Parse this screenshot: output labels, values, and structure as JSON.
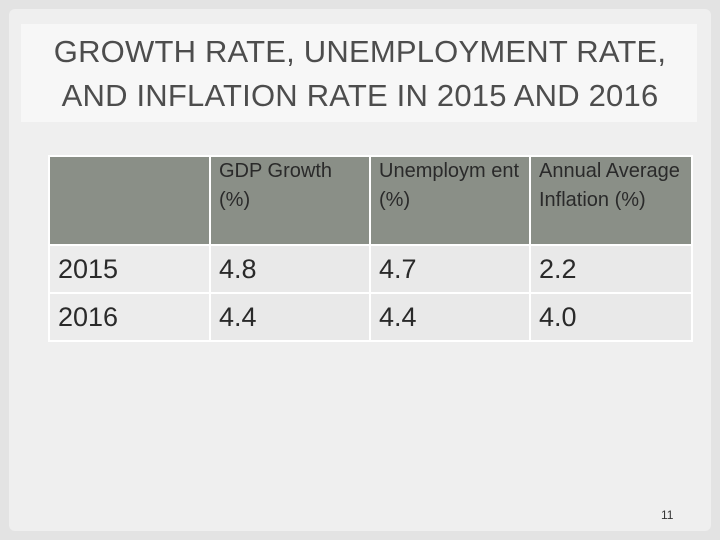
{
  "title": "GROWTH RATE, UNEMPLOYMENT RATE,\nAND INFLATION RATE IN 2015 AND 2016",
  "table": {
    "headers": [
      "",
      "GDP Growth (%)",
      "Unemploym ent (%)",
      "Annual Average Inflation (%)"
    ],
    "rows": [
      [
        "2015",
        "4.8",
        "4.7",
        "2.2"
      ],
      [
        "2016",
        "4.4",
        "4.4",
        "4.0"
      ]
    ]
  },
  "page_number": "11"
}
